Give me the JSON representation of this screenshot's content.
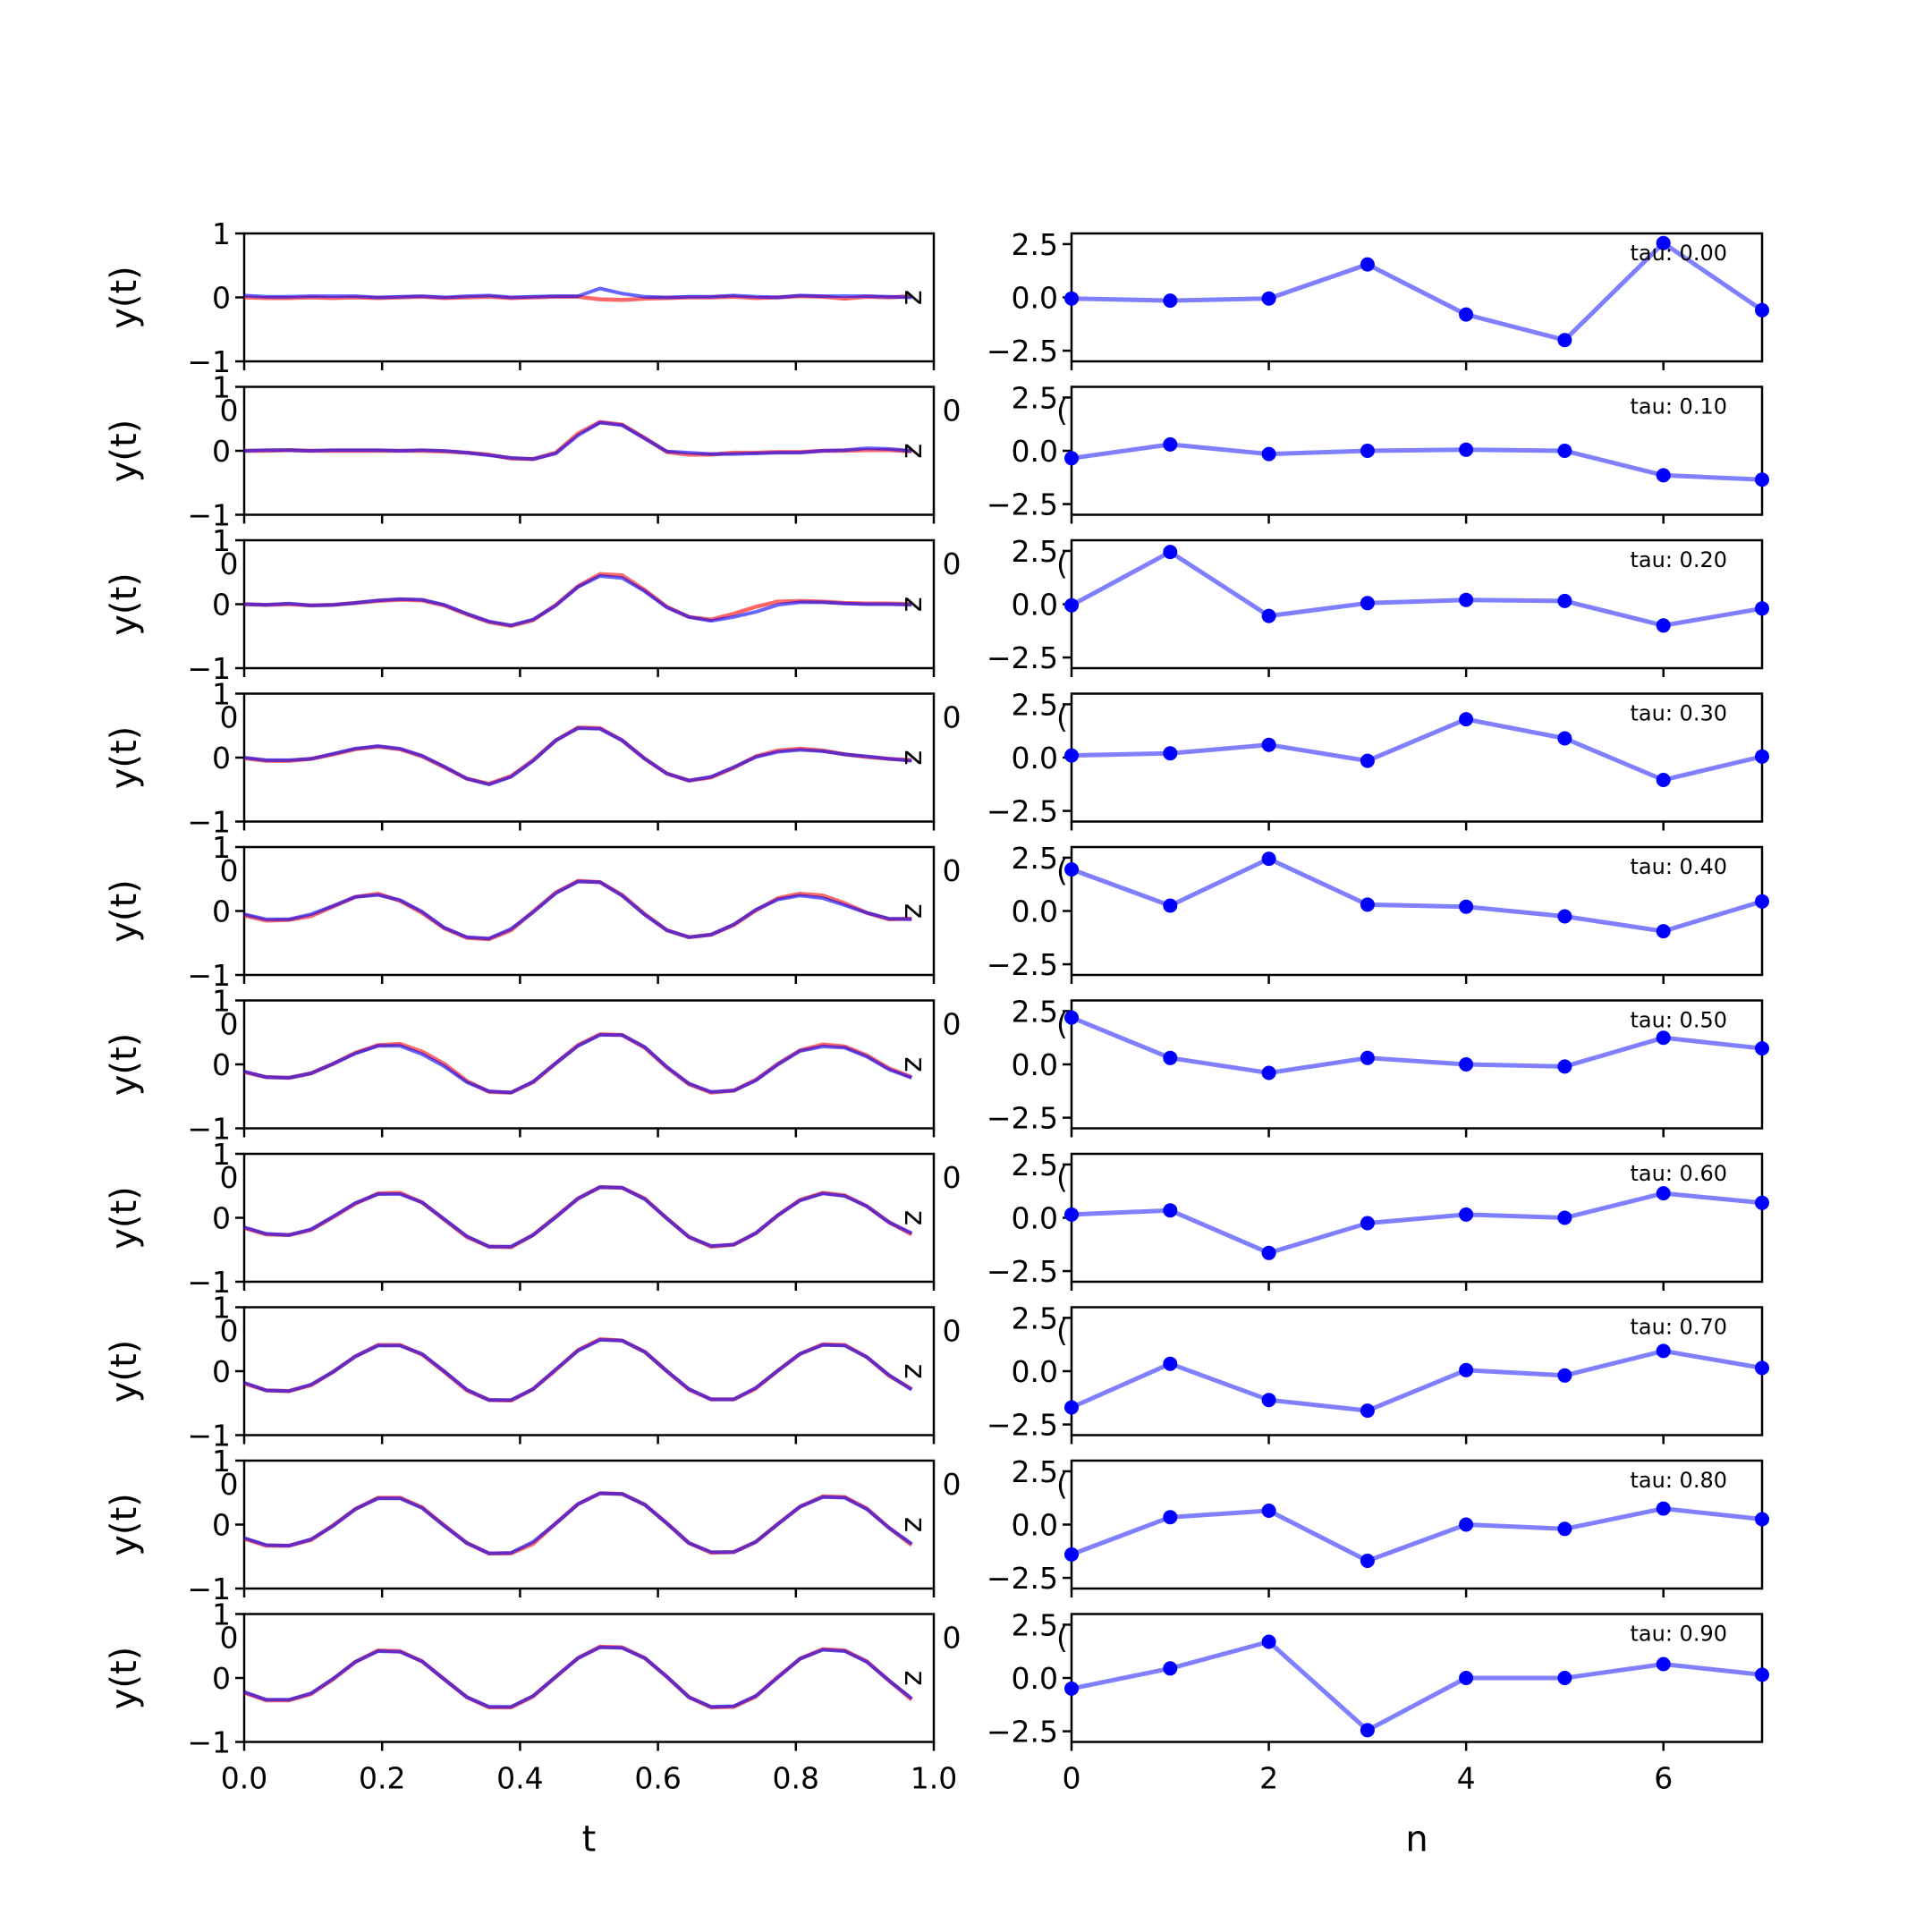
{
  "chart_data": {
    "type": "line",
    "colors": {
      "true": "#ff0000",
      "pred": "#0000ff",
      "axes": "#000000"
    },
    "left": {
      "xlabel": "t",
      "ylabel": "y(t)",
      "xlim": [
        0.0,
        1.0
      ],
      "ylim": [
        -1,
        1
      ],
      "xticks": [
        "0.0",
        "0.2",
        "0.4",
        "0.6",
        "0.8",
        "1.0"
      ],
      "yticks": [
        "1",
        "0",
        "−1"
      ],
      "marker_letter": "z",
      "artifact_zero": "0",
      "x": [
        0.0,
        0.032,
        0.065,
        0.097,
        0.129,
        0.161,
        0.194,
        0.226,
        0.258,
        0.29,
        0.323,
        0.355,
        0.387,
        0.419,
        0.452,
        0.484,
        0.516,
        0.548,
        0.581,
        0.613,
        0.645,
        0.677,
        0.71,
        0.742,
        0.774,
        0.806,
        0.839,
        0.871,
        0.903,
        0.935,
        0.968
      ],
      "panels": [
        {
          "true": [
            0.0,
            -0.01,
            -0.01,
            0.0,
            -0.01,
            0.0,
            -0.01,
            0.0,
            0.01,
            -0.01,
            0.0,
            0.01,
            -0.01,
            0.0,
            0.01,
            0.01,
            -0.03,
            -0.04,
            -0.02,
            -0.01,
            0.0,
            0.0,
            0.01,
            -0.01,
            0.0,
            0.02,
            0.01,
            -0.02,
            0.01,
            0.0,
            0.02
          ],
          "pred": [
            0.03,
            0.01,
            0.01,
            0.02,
            0.02,
            0.02,
            0.0,
            0.01,
            0.02,
            0.0,
            0.02,
            0.03,
            0.0,
            0.01,
            0.02,
            0.02,
            0.14,
            0.06,
            0.01,
            0.0,
            0.01,
            0.01,
            0.03,
            0.01,
            0.0,
            0.03,
            0.02,
            0.02,
            0.02,
            0.01,
            0.0
          ]
        },
        {
          "true": [
            0.0,
            0.0,
            0.01,
            0.0,
            0.0,
            0.0,
            0.0,
            0.0,
            0.0,
            -0.01,
            -0.03,
            -0.06,
            -0.12,
            -0.13,
            -0.03,
            0.27,
            0.45,
            0.41,
            0.2,
            -0.02,
            -0.06,
            -0.06,
            -0.03,
            -0.03,
            -0.02,
            -0.02,
            0.0,
            0.0,
            0.01,
            0.01,
            -0.01
          ],
          "pred": [
            0.0,
            0.01,
            0.01,
            0.0,
            0.01,
            0.01,
            0.01,
            0.0,
            0.01,
            0.0,
            -0.03,
            -0.07,
            -0.11,
            -0.13,
            -0.04,
            0.24,
            0.44,
            0.4,
            0.19,
            -0.01,
            -0.03,
            -0.05,
            -0.05,
            -0.04,
            -0.03,
            -0.03,
            0.0,
            0.01,
            0.04,
            0.03,
            0.0
          ]
        },
        {
          "true": [
            0.0,
            -0.01,
            0.0,
            -0.02,
            -0.01,
            0.02,
            0.05,
            0.07,
            0.06,
            -0.02,
            -0.16,
            -0.28,
            -0.34,
            -0.25,
            -0.01,
            0.28,
            0.47,
            0.45,
            0.22,
            -0.04,
            -0.2,
            -0.24,
            -0.15,
            -0.04,
            0.04,
            0.05,
            0.04,
            0.02,
            0.01,
            0.01,
            0.0
          ],
          "pred": [
            0.0,
            -0.01,
            0.01,
            -0.02,
            -0.01,
            0.02,
            0.06,
            0.08,
            0.07,
            -0.01,
            -0.15,
            -0.27,
            -0.33,
            -0.24,
            -0.02,
            0.27,
            0.44,
            0.41,
            0.2,
            -0.05,
            -0.2,
            -0.26,
            -0.2,
            -0.12,
            -0.01,
            0.03,
            0.03,
            0.01,
            0.0,
            0.0,
            -0.01
          ]
        },
        {
          "true": [
            -0.01,
            -0.05,
            -0.05,
            -0.02,
            0.05,
            0.13,
            0.17,
            0.13,
            0.02,
            -0.15,
            -0.33,
            -0.41,
            -0.29,
            -0.04,
            0.27,
            0.47,
            0.46,
            0.27,
            -0.02,
            -0.25,
            -0.36,
            -0.31,
            -0.16,
            0.02,
            0.11,
            0.14,
            0.11,
            0.05,
            0.01,
            -0.02,
            -0.04
          ],
          "pred": [
            0.0,
            -0.04,
            -0.04,
            -0.02,
            0.06,
            0.14,
            0.18,
            0.14,
            0.03,
            -0.14,
            -0.33,
            -0.42,
            -0.3,
            -0.05,
            0.27,
            0.46,
            0.45,
            0.27,
            -0.02,
            -0.25,
            -0.36,
            -0.3,
            -0.15,
            0.01,
            0.09,
            0.12,
            0.1,
            0.05,
            0.02,
            -0.02,
            -0.05
          ]
        },
        {
          "true": [
            -0.07,
            -0.15,
            -0.14,
            -0.08,
            0.07,
            0.22,
            0.27,
            0.16,
            -0.03,
            -0.27,
            -0.42,
            -0.44,
            -0.3,
            -0.01,
            0.29,
            0.47,
            0.45,
            0.25,
            -0.05,
            -0.3,
            -0.41,
            -0.37,
            -0.22,
            0.01,
            0.2,
            0.27,
            0.24,
            0.12,
            -0.03,
            -0.13,
            -0.12
          ],
          "pred": [
            -0.05,
            -0.13,
            -0.13,
            -0.05,
            0.08,
            0.22,
            0.25,
            0.17,
            -0.01,
            -0.26,
            -0.41,
            -0.43,
            -0.28,
            -0.02,
            0.28,
            0.46,
            0.45,
            0.24,
            -0.06,
            -0.3,
            -0.41,
            -0.37,
            -0.21,
            0.02,
            0.18,
            0.24,
            0.2,
            0.09,
            -0.03,
            -0.12,
            -0.13
          ]
        },
        {
          "true": [
            -0.12,
            -0.2,
            -0.21,
            -0.14,
            0.01,
            0.18,
            0.3,
            0.32,
            0.2,
            0.01,
            -0.26,
            -0.43,
            -0.44,
            -0.28,
            0.02,
            0.3,
            0.47,
            0.46,
            0.26,
            -0.05,
            -0.31,
            -0.44,
            -0.41,
            -0.24,
            0.01,
            0.22,
            0.31,
            0.28,
            0.14,
            -0.06,
            -0.2
          ],
          "pred": [
            -0.11,
            -0.2,
            -0.21,
            -0.14,
            0.01,
            0.17,
            0.29,
            0.29,
            0.16,
            -0.03,
            -0.28,
            -0.42,
            -0.44,
            -0.27,
            0.02,
            0.29,
            0.46,
            0.46,
            0.27,
            -0.04,
            -0.3,
            -0.43,
            -0.41,
            -0.25,
            0.0,
            0.21,
            0.28,
            0.26,
            0.12,
            -0.08,
            -0.21
          ]
        },
        {
          "true": [
            -0.16,
            -0.26,
            -0.27,
            -0.19,
            0.01,
            0.22,
            0.38,
            0.39,
            0.24,
            -0.03,
            -0.3,
            -0.45,
            -0.46,
            -0.27,
            0.02,
            0.3,
            0.48,
            0.47,
            0.3,
            -0.01,
            -0.3,
            -0.45,
            -0.42,
            -0.24,
            0.04,
            0.28,
            0.39,
            0.35,
            0.18,
            -0.07,
            -0.26
          ],
          "pred": [
            -0.15,
            -0.25,
            -0.27,
            -0.18,
            0.02,
            0.23,
            0.37,
            0.37,
            0.24,
            -0.02,
            -0.29,
            -0.45,
            -0.45,
            -0.27,
            0.01,
            0.3,
            0.48,
            0.47,
            0.29,
            -0.01,
            -0.3,
            -0.44,
            -0.42,
            -0.24,
            0.04,
            0.27,
            0.38,
            0.34,
            0.18,
            -0.07,
            -0.24
          ]
        },
        {
          "true": [
            -0.19,
            -0.3,
            -0.31,
            -0.22,
            -0.01,
            0.23,
            0.41,
            0.41,
            0.26,
            -0.01,
            -0.3,
            -0.45,
            -0.46,
            -0.28,
            0.02,
            0.33,
            0.5,
            0.48,
            0.3,
            0.0,
            -0.29,
            -0.44,
            -0.44,
            -0.27,
            0.01,
            0.27,
            0.42,
            0.41,
            0.22,
            -0.07,
            -0.28
          ],
          "pred": [
            -0.18,
            -0.3,
            -0.31,
            -0.21,
            -0.01,
            0.23,
            0.4,
            0.4,
            0.27,
            0.0,
            -0.29,
            -0.45,
            -0.45,
            -0.28,
            0.03,
            0.32,
            0.49,
            0.48,
            0.3,
            0.0,
            -0.28,
            -0.44,
            -0.44,
            -0.26,
            0.01,
            0.27,
            0.41,
            0.4,
            0.22,
            -0.06,
            -0.29
          ]
        },
        {
          "true": [
            -0.22,
            -0.33,
            -0.33,
            -0.24,
            -0.01,
            0.24,
            0.42,
            0.42,
            0.27,
            -0.01,
            -0.29,
            -0.45,
            -0.45,
            -0.3,
            0.02,
            0.32,
            0.49,
            0.48,
            0.31,
            0.02,
            -0.29,
            -0.44,
            -0.43,
            -0.27,
            0.01,
            0.28,
            0.44,
            0.43,
            0.25,
            -0.05,
            -0.32
          ],
          "pred": [
            -0.21,
            -0.32,
            -0.33,
            -0.23,
            -0.02,
            0.24,
            0.41,
            0.41,
            0.26,
            -0.02,
            -0.29,
            -0.45,
            -0.44,
            -0.27,
            0.02,
            0.32,
            0.49,
            0.48,
            0.31,
            0.02,
            -0.29,
            -0.43,
            -0.43,
            -0.27,
            0.01,
            0.28,
            0.43,
            0.42,
            0.24,
            -0.05,
            -0.3
          ]
        },
        {
          "true": [
            -0.23,
            -0.35,
            -0.35,
            -0.25,
            -0.02,
            0.25,
            0.43,
            0.42,
            0.26,
            -0.02,
            -0.3,
            -0.46,
            -0.46,
            -0.29,
            0.02,
            0.31,
            0.49,
            0.48,
            0.31,
            0.02,
            -0.3,
            -0.46,
            -0.45,
            -0.29,
            0.02,
            0.3,
            0.45,
            0.43,
            0.26,
            -0.04,
            -0.34
          ],
          "pred": [
            -0.22,
            -0.34,
            -0.34,
            -0.24,
            -0.01,
            0.25,
            0.42,
            0.41,
            0.26,
            -0.02,
            -0.3,
            -0.45,
            -0.45,
            -0.28,
            0.02,
            0.31,
            0.48,
            0.47,
            0.31,
            0.02,
            -0.3,
            -0.45,
            -0.44,
            -0.28,
            0.01,
            0.3,
            0.44,
            0.42,
            0.25,
            -0.04,
            -0.32
          ]
        }
      ]
    },
    "right": {
      "xlabel": "n",
      "xlim": [
        0,
        7
      ],
      "ylim": [
        -3.0,
        3.0
      ],
      "xticks": [
        "0",
        "2",
        "4",
        "6"
      ],
      "yticks": [
        "2.5",
        "0.0",
        "−2.5"
      ],
      "artifact_zero": "0",
      "artifact_partial": "(",
      "n": [
        0,
        1,
        2,
        3,
        4,
        5,
        6,
        7
      ],
      "panels": [
        {
          "tau": "tau: 0.00",
          "values": [
            -0.05,
            -0.15,
            -0.05,
            1.55,
            -0.8,
            -2.0,
            2.55,
            -0.6
          ]
        },
        {
          "tau": "tau: 0.10",
          "values": [
            -0.35,
            0.3,
            -0.15,
            0.0,
            0.05,
            0.0,
            -1.15,
            -1.35
          ]
        },
        {
          "tau": "tau: 0.20",
          "values": [
            -0.05,
            2.45,
            -0.55,
            0.05,
            0.2,
            0.15,
            -1.0,
            -0.2
          ]
        },
        {
          "tau": "tau: 0.30",
          "values": [
            0.1,
            0.2,
            0.6,
            -0.15,
            1.8,
            0.9,
            -1.05,
            0.05
          ]
        },
        {
          "tau": "tau: 0.40",
          "values": [
            1.95,
            0.25,
            2.45,
            0.3,
            0.2,
            -0.25,
            -0.95,
            0.45
          ]
        },
        {
          "tau": "tau: 0.50",
          "values": [
            2.2,
            0.3,
            -0.4,
            0.3,
            0.0,
            -0.1,
            1.25,
            0.75
          ]
        },
        {
          "tau": "tau: 0.60",
          "values": [
            0.15,
            0.35,
            -1.65,
            -0.25,
            0.15,
            0.0,
            1.15,
            0.7
          ]
        },
        {
          "tau": "tau: 0.70",
          "values": [
            -1.7,
            0.35,
            -1.35,
            -1.85,
            0.05,
            -0.2,
            0.95,
            0.15
          ]
        },
        {
          "tau": "tau: 0.80",
          "values": [
            -1.4,
            0.35,
            0.65,
            -1.7,
            0.0,
            -0.2,
            0.75,
            0.25
          ]
        },
        {
          "tau": "tau: 0.90",
          "values": [
            -0.5,
            0.45,
            1.7,
            -2.45,
            0.0,
            0.0,
            0.65,
            0.15
          ]
        }
      ]
    }
  }
}
